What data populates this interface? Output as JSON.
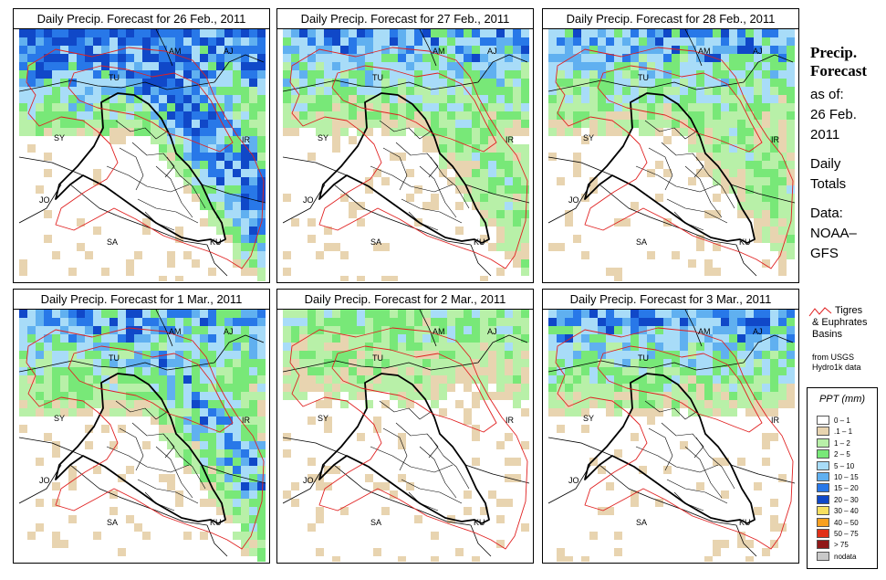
{
  "panels": [
    {
      "title": "Daily Precip. Forecast for  26 Feb., 2011"
    },
    {
      "title": "Daily Precip. Forecast for  27 Feb., 2011"
    },
    {
      "title": "Daily Precip. Forecast for  28 Feb., 2011"
    },
    {
      "title": "Daily Precip. Forecast for  1 Mar., 2011"
    },
    {
      "title": "Daily Precip. Forecast for  2 Mar., 2011"
    },
    {
      "title": "Daily Precip. Forecast for  3 Mar., 2011"
    }
  ],
  "country_labels": [
    "AM",
    "AJ",
    "TU",
    "SY",
    "IR",
    "JO",
    "SA",
    "KU"
  ],
  "panel_precip": [
    {
      "north": "heavy",
      "southeast": "heavy"
    },
    {
      "north": "moderate",
      "southeast": "light"
    },
    {
      "north": "moderate",
      "southeast": "light"
    },
    {
      "north": "moderate",
      "southeast": "moderate"
    },
    {
      "north": "light",
      "southeast": "none"
    },
    {
      "north": "moderate",
      "southeast": "none"
    }
  ],
  "sidebar": {
    "title_line1": "Precip.",
    "title_line2": "Forecast",
    "asof_label": "as of:",
    "date_line1": "26 Feb.",
    "date_line2": "2011",
    "daily_line1": "Daily",
    "daily_line2": "Totals",
    "data_line1": "Data:",
    "data_line2": "NOAA–",
    "data_line3": "GFS"
  },
  "basin_legend": {
    "line1": "Tigres",
    "line2": "& Euphrates Basins",
    "line3": "from USGS Hydro1k data",
    "color": "#e02020"
  },
  "ppt_legend": {
    "title": "PPT (mm)",
    "items": [
      {
        "label": "0 – 1",
        "color": "#ffffff"
      },
      {
        "label": ".1 – 1",
        "color": "#e8d4b0"
      },
      {
        "label": "1 – 2",
        "color": "#b8f0a8"
      },
      {
        "label": "2 – 5",
        "color": "#78e878"
      },
      {
        "label": "5 – 10",
        "color": "#a8dcf8"
      },
      {
        "label": "10 – 15",
        "color": "#60b0f0"
      },
      {
        "label": "15 – 20",
        "color": "#2878e8"
      },
      {
        "label": "20 – 30",
        "color": "#1048c8"
      },
      {
        "label": "30 – 40",
        "color": "#f8e060"
      },
      {
        "label": "40 – 50",
        "color": "#f8a020"
      },
      {
        "label": "50 – 75",
        "color": "#e03018"
      },
      {
        "label": "> 75",
        "color": "#901818"
      },
      {
        "label": "nodata",
        "color": "#c8c8c8"
      }
    ]
  }
}
